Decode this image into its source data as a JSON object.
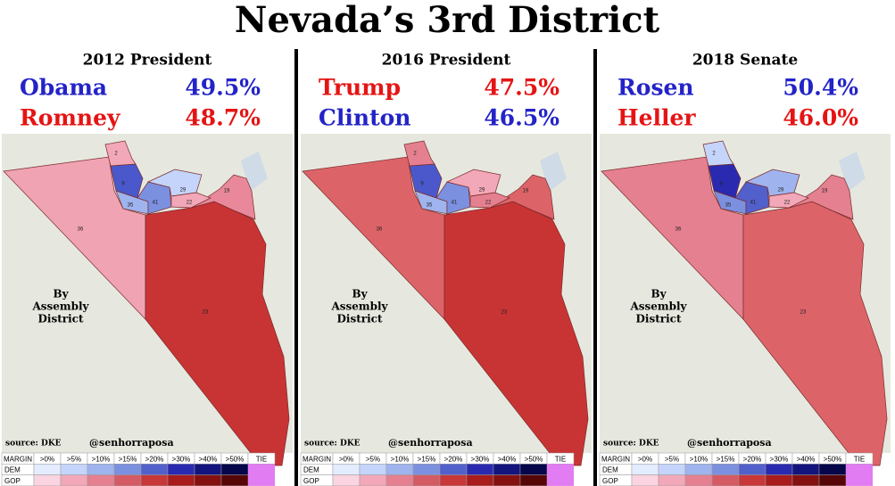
{
  "title": "Nevada’s 3rd District",
  "map_label": [
    "By",
    "Assembly",
    "District"
  ],
  "source": "source: DKE",
  "credit": "@senhorraposa",
  "legend": {
    "header": [
      "MARGIN",
      ">0%",
      ">5%",
      ">10%",
      ">15%",
      ">20%",
      ">30%",
      ">40%",
      ">50%",
      "TIE"
    ],
    "rows": [
      {
        "label": "DEM",
        "colors": [
          "#e4ecff",
          "#c4d4fa",
          "#9fb4ee",
          "#7c90e0",
          "#5260cc",
          "#2a2ab0",
          "#14147e",
          "#06064a"
        ]
      },
      {
        "label": "GOP",
        "colors": [
          "#fad4e0",
          "#f2a8b8",
          "#e48090",
          "#d45a64",
          "#c83838",
          "#a81c1c",
          "#841010",
          "#560606"
        ]
      }
    ],
    "tie_color": "#e27cf2"
  },
  "panels": [
    {
      "heading": "2012 President",
      "candidates": [
        {
          "name": "Obama",
          "share": "49.5%",
          "color": "#2323c8"
        },
        {
          "name": "Romney",
          "share": "48.7%",
          "color": "#e51414"
        }
      ],
      "districts": [
        {
          "label": "36",
          "color": "#f0a3b3"
        },
        {
          "label": "23",
          "color": "#c83434"
        },
        {
          "label": "19",
          "color": "#e8889a"
        },
        {
          "label": "9",
          "color": "#4a58cc"
        },
        {
          "label": "35",
          "color": "#9fb4ee"
        },
        {
          "label": "41",
          "color": "#7c90e0"
        },
        {
          "label": "29",
          "color": "#c4d4fa"
        },
        {
          "label": "22",
          "color": "#f2a8b8"
        },
        {
          "label": "2",
          "color": "#f2a8b8"
        }
      ]
    },
    {
      "heading": "2016 President",
      "candidates": [
        {
          "name": "Trump",
          "share": "47.5%",
          "color": "#e51414"
        },
        {
          "name": "Clinton",
          "share": "46.5%",
          "color": "#2323c8"
        }
      ],
      "districts": [
        {
          "label": "36",
          "color": "#dc6468"
        },
        {
          "label": "23",
          "color": "#c83434"
        },
        {
          "label": "19",
          "color": "#dc6468"
        },
        {
          "label": "9",
          "color": "#4a58cc"
        },
        {
          "label": "35",
          "color": "#9fb4ee"
        },
        {
          "label": "41",
          "color": "#7c90e0"
        },
        {
          "label": "29",
          "color": "#f2a8b8"
        },
        {
          "label": "22",
          "color": "#e48090"
        },
        {
          "label": "2",
          "color": "#e48090"
        }
      ]
    },
    {
      "heading": "2018 Senate",
      "candidates": [
        {
          "name": "Rosen",
          "share": "50.4%",
          "color": "#2323c8"
        },
        {
          "name": "Heller",
          "share": "46.0%",
          "color": "#e51414"
        }
      ],
      "districts": [
        {
          "label": "36",
          "color": "#e48090"
        },
        {
          "label": "23",
          "color": "#dc6468"
        },
        {
          "label": "19",
          "color": "#e48090"
        },
        {
          "label": "9",
          "color": "#2a2ab0"
        },
        {
          "label": "35",
          "color": "#7c90e0"
        },
        {
          "label": "41",
          "color": "#5260cc"
        },
        {
          "label": "29",
          "color": "#9fb4ee"
        },
        {
          "label": "22",
          "color": "#f2a8b8"
        },
        {
          "label": "2",
          "color": "#c4d4fa"
        }
      ]
    }
  ]
}
